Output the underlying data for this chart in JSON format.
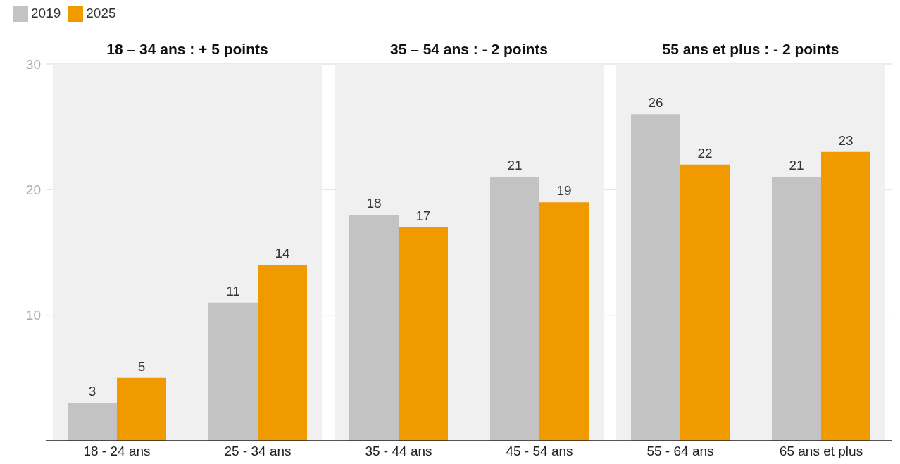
{
  "chart_data": {
    "type": "bar",
    "categories": [
      "18 - 24 ans",
      "25 - 34 ans",
      "35 - 44 ans",
      "45 - 54 ans",
      "55 - 64 ans",
      "65 ans et plus"
    ],
    "series": [
      {
        "name": "2019",
        "color": "#c3c3c3",
        "values": [
          3,
          11,
          18,
          21,
          26,
          21
        ]
      },
      {
        "name": "2025",
        "color": "#f09a00",
        "values": [
          5,
          14,
          17,
          19,
          22,
          23
        ]
      }
    ],
    "ylim": [
      0,
      30
    ],
    "yticks": [
      {
        "value": 0,
        "label": null
      },
      10,
      20,
      30
    ],
    "grid": "y",
    "legend": "top left",
    "data_labels": true,
    "bands": [
      {
        "axis": "x",
        "from": "18 - 24 ans",
        "to": "25 - 34 ans",
        "label": "18 – 34 ans : + 5 points",
        "color": "#f0f0f0"
      },
      {
        "axis": "x",
        "from": "35 - 44 ans",
        "to": "45 - 54 ans",
        "label": "35 – 54 ans : - 2 points",
        "color": "#f0f0f0"
      },
      {
        "axis": "x",
        "from": "55 - 64 ans",
        "to": "65 ans et plus",
        "label": "55 ans et plus : - 2 points",
        "color": "#f0f0f0"
      }
    ]
  }
}
